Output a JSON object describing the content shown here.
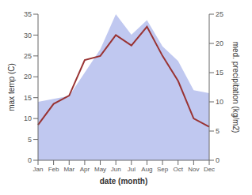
{
  "chart_data": {
    "type": "line",
    "x_label": "date (month)",
    "y_label": "max temp (C)",
    "y2_label": "med. precipitation (kg/m2)",
    "categories": [
      "Jan",
      "Feb",
      "Mar",
      "Apr",
      "May",
      "Jun",
      "Jul",
      "Aug",
      "Sep",
      "Oct",
      "Nov",
      "Dec"
    ],
    "series": [
      {
        "type": "area",
        "axis": "y2",
        "color": "#c0c8f0",
        "values": [
          10.0,
          10.5,
          11.0,
          15.0,
          19.0,
          25.0,
          21.5,
          24.0,
          19.5,
          17.0,
          12.0,
          11.5
        ]
      },
      {
        "type": "line",
        "color": "#993333",
        "values": [
          8.5,
          13.5,
          15.5,
          24.0,
          25.0,
          30.0,
          27.5,
          32.0,
          25.0,
          19.0,
          10.0,
          8.0
        ]
      }
    ],
    "ylim": [
      0,
      35
    ],
    "yticks": [
      0,
      5,
      10,
      15,
      20,
      25,
      30,
      35
    ],
    "y2lim": [
      0,
      25
    ],
    "y2ticks": [
      0,
      5,
      10,
      15,
      20,
      25
    ]
  }
}
